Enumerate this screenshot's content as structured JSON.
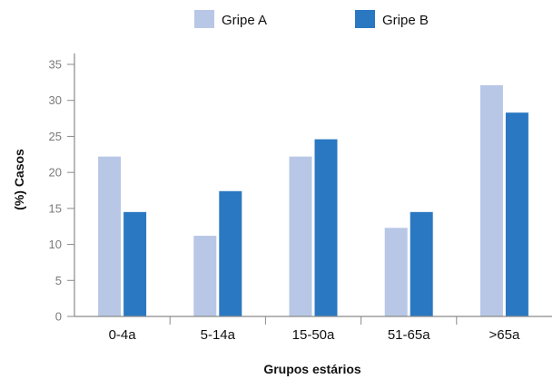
{
  "chart_data": {
    "type": "bar",
    "title": "",
    "xlabel": "Grupos estários",
    "ylabel": "(%) Casos",
    "categories": [
      "0-4a",
      "5-14a",
      "15-50a",
      "51-65a",
      ">65a"
    ],
    "series": [
      {
        "name": "Gripe A",
        "color": "#b8c7e6",
        "values": [
          22.2,
          11.2,
          22.2,
          12.3,
          32.1
        ]
      },
      {
        "name": "Gripe B",
        "color": "#2a78c2",
        "values": [
          14.5,
          17.4,
          24.6,
          14.5,
          28.3
        ]
      }
    ],
    "ylim": [
      0,
      35
    ],
    "yticks": [
      0,
      5,
      10,
      15,
      20,
      25,
      30,
      35
    ],
    "grid": false,
    "legend": "top-center"
  }
}
